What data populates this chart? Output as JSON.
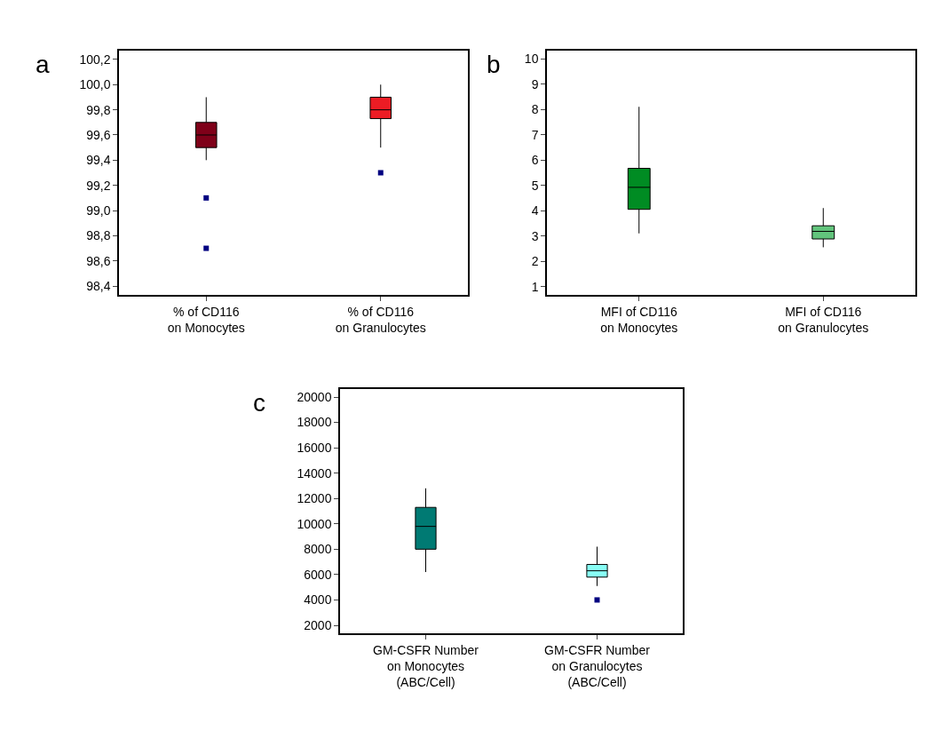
{
  "chart_data": [
    {
      "type": "box",
      "title": "a",
      "categories": [
        "% of CD116\non Monocytes",
        "% of CD116\non Granulocytes"
      ],
      "colors": [
        "#7f0019",
        "#ec1c24"
      ],
      "boxes": [
        {
          "low": 99.4,
          "q1": 99.5,
          "median": 99.6,
          "q3": 99.7,
          "high": 99.9,
          "outliers": [
            99.1,
            98.7
          ]
        },
        {
          "low": 99.5,
          "q1": 99.73,
          "median": 99.8,
          "q3": 99.9,
          "high": 100.0,
          "outliers": [
            99.3
          ]
        }
      ],
      "ylim": [
        98.33,
        100.27
      ],
      "yticks": [
        {
          "value": 98.4,
          "label": "98,4"
        },
        {
          "value": 98.6,
          "label": "98,6"
        },
        {
          "value": 98.8,
          "label": "98,8"
        },
        {
          "value": 99.0,
          "label": "99,0"
        },
        {
          "value": 99.2,
          "label": "99,2"
        },
        {
          "value": 99.4,
          "label": "99,4"
        },
        {
          "value": 99.6,
          "label": "99,6"
        },
        {
          "value": 99.8,
          "label": "99,8"
        },
        {
          "value": 100.0,
          "label": "100,0"
        },
        {
          "value": 100.2,
          "label": "100,2"
        }
      ]
    },
    {
      "type": "box",
      "title": "b",
      "categories": [
        "MFI of CD116\non Monocytes",
        "MFI of CD116\non Granulocytes"
      ],
      "colors": [
        "#008c23",
        "#62c47c"
      ],
      "boxes": [
        {
          "low": 3.1,
          "q1": 4.05,
          "median": 4.92,
          "q3": 5.67,
          "high": 8.1
        },
        {
          "low": 2.55,
          "q1": 2.88,
          "median": 3.18,
          "q3": 3.4,
          "high": 4.1
        }
      ],
      "ylim": [
        0.67,
        10.32
      ],
      "yticks": [
        1,
        2,
        3,
        4,
        5,
        6,
        7,
        8,
        9,
        10
      ]
    },
    {
      "type": "box",
      "title": "c",
      "categories": [
        "GM-CSFR Number\non Monocytes\n(ABC/Cell)",
        "GM-CSFR Number\non Granulocytes\n(ABC/Cell)"
      ],
      "colors": [
        "#007a73",
        "#88fff5"
      ],
      "boxes": [
        {
          "low": 6200,
          "q1": 8000,
          "median": 9800,
          "q3": 11300,
          "high": 12800
        },
        {
          "low": 5100,
          "q1": 5800,
          "median": 6300,
          "q3": 6800,
          "high": 8200,
          "outliers": [
            4000
          ]
        }
      ],
      "ylim": [
        1370,
        20630
      ],
      "yticks": [
        2000,
        4000,
        6000,
        8000,
        10000,
        12000,
        14000,
        16000,
        18000,
        20000
      ]
    }
  ]
}
